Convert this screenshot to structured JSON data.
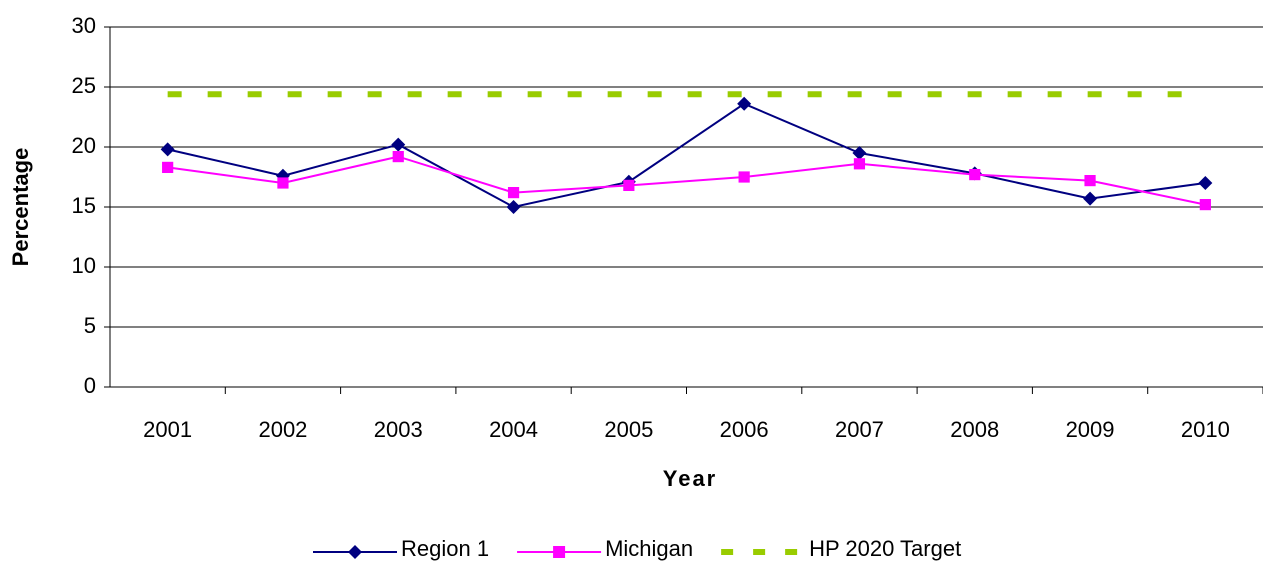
{
  "chart_data": {
    "type": "line",
    "categories": [
      "2001",
      "2002",
      "2003",
      "2004",
      "2005",
      "2006",
      "2007",
      "2008",
      "2009",
      "2010"
    ],
    "series": [
      {
        "name": "Region 1",
        "color": "#000080",
        "marker": "diamond",
        "values": [
          19.8,
          17.6,
          20.2,
          15.0,
          17.1,
          23.6,
          19.5,
          17.8,
          15.7,
          17.0
        ]
      },
      {
        "name": "Michigan",
        "color": "#ff00ff",
        "marker": "square",
        "values": [
          18.3,
          17.0,
          19.2,
          16.2,
          16.8,
          17.5,
          18.6,
          17.7,
          17.2,
          15.2
        ]
      },
      {
        "name": "HP 2020 Target",
        "color": "#99cc00",
        "dashed": true,
        "values": [
          24.4,
          24.4,
          24.4,
          24.4,
          24.4,
          24.4,
          24.4,
          24.4,
          24.4,
          24.4
        ]
      }
    ],
    "xlabel": "Year",
    "ylabel": "Percentage",
    "ylim": [
      0,
      30
    ],
    "yticks": [
      0,
      5,
      10,
      15,
      20,
      25,
      30
    ],
    "grid": true,
    "legend": "bottom"
  }
}
